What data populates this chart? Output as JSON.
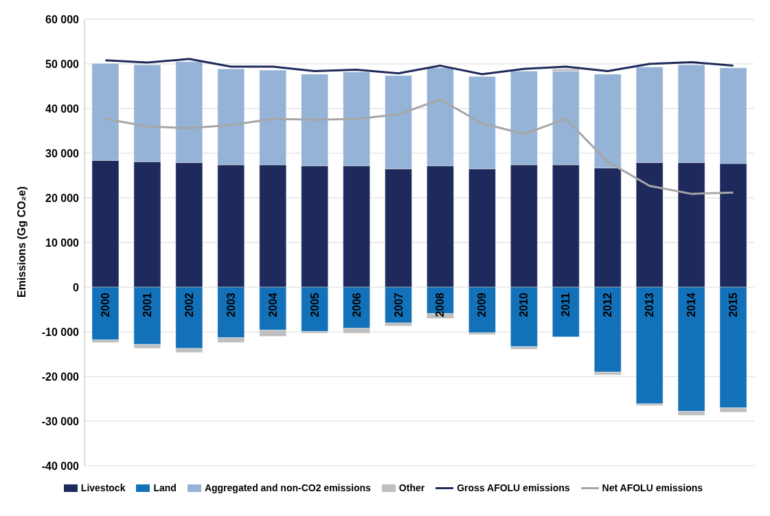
{
  "chart_data": {
    "type": "bar",
    "ylabel": "Emissions (Gg CO₂e)",
    "stacked": true,
    "categories": [
      "2000",
      "2001",
      "2002",
      "2003",
      "2004",
      "2005",
      "2006",
      "2007",
      "2008",
      "2009",
      "2010",
      "2011",
      "2012",
      "2013",
      "2014",
      "2015"
    ],
    "series": [
      {
        "name": "Livestock",
        "color": "#1f2a5c",
        "values": [
          28400,
          28100,
          27900,
          27400,
          27400,
          27200,
          27200,
          26500,
          27200,
          26500,
          27400,
          27400,
          26700,
          27900,
          27900,
          27700
        ]
      },
      {
        "name": "Land",
        "color": "#1271b8",
        "values": [
          -11800,
          -12800,
          -13700,
          -11300,
          -9600,
          -9900,
          -9200,
          -8000,
          -5900,
          -10200,
          -13300,
          -11100,
          -19000,
          -26100,
          -27800,
          -27000
        ]
      },
      {
        "name": "Aggregated and non-CO2 emissions",
        "color": "#95b3d7",
        "values": [
          21700,
          21700,
          22600,
          21500,
          21200,
          20500,
          21000,
          20900,
          21900,
          20700,
          21000,
          21000,
          21000,
          21400,
          21900,
          21400
        ]
      },
      {
        "name": "Other",
        "color": "#bfbfbf",
        "values": [
          -600,
          -900,
          -900,
          -1100,
          -1400,
          -400,
          -1100,
          -700,
          -1100,
          -400,
          -600,
          500,
          -600,
          -400,
          -900,
          -1000
        ]
      },
      {
        "name": "Gross AFOLU emissions",
        "type": "line",
        "color": "#1f2a5c",
        "values": [
          50800,
          50300,
          51100,
          49400,
          49400,
          48400,
          48700,
          47900,
          49600,
          47700,
          48900,
          49400,
          48400,
          50000,
          50400,
          49600
        ]
      },
      {
        "name": "Net AFOLU emissions",
        "type": "line",
        "color": "#a6a6a6",
        "values": [
          37700,
          36000,
          35600,
          36300,
          37700,
          37500,
          37700,
          38700,
          42000,
          36700,
          34300,
          37700,
          28100,
          22700,
          20900,
          21200
        ]
      }
    ],
    "ylim": [
      -40000,
      60000
    ],
    "yticks": [
      -40000,
      -30000,
      -20000,
      -10000,
      0,
      10000,
      20000,
      30000,
      40000,
      50000,
      60000
    ],
    "grid": "y",
    "legend": "bottom",
    "marker": "none",
    "line_style": "solid"
  }
}
